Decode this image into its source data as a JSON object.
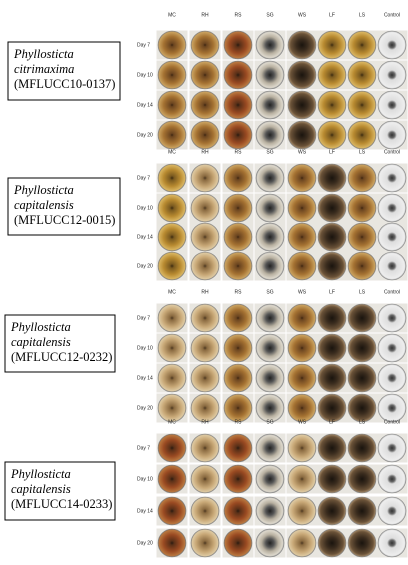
{
  "panels": [
    {
      "species": [
        "Phyllosticta",
        "citrimaxima"
      ],
      "strain": "(MFLUCC10-0137)",
      "columns": [
        "MC",
        "RH",
        "RS",
        "SG",
        "WS",
        "LF",
        "LS",
        "Control"
      ],
      "rows": [
        "Day 7",
        "Day 10",
        "Day 14",
        "Day 20"
      ]
    },
    {
      "species": [
        "Phyllosticta",
        "capitalensis"
      ],
      "strain": "(MFLUCC12-0015)",
      "columns": [
        "MC",
        "RH",
        "RS",
        "SG",
        "WS",
        "LF",
        "LS",
        "Control"
      ],
      "rows": [
        "Day 7",
        "Day 10",
        "Day 14",
        "Day 20"
      ]
    },
    {
      "species": [
        "Phyllosticta",
        "capitalensis"
      ],
      "strain": "(MFLUCC12-0232)",
      "columns": [
        "MC",
        "RH",
        "RS",
        "SG",
        "WS",
        "LF",
        "LS",
        "Control"
      ],
      "rows": [
        "Day 7",
        "Day 10",
        "Day 14",
        "Day 20"
      ]
    },
    {
      "species": [
        "Phyllosticta",
        "capitalensis"
      ],
      "strain": "(MFLUCC14-0233)",
      "columns": [
        "MC",
        "RH",
        "RS",
        "SG",
        "WS",
        "LF",
        "LS",
        "Control"
      ],
      "rows": [
        "Day 7",
        "Day 10",
        "Day 14",
        "Day 20"
      ]
    }
  ]
}
